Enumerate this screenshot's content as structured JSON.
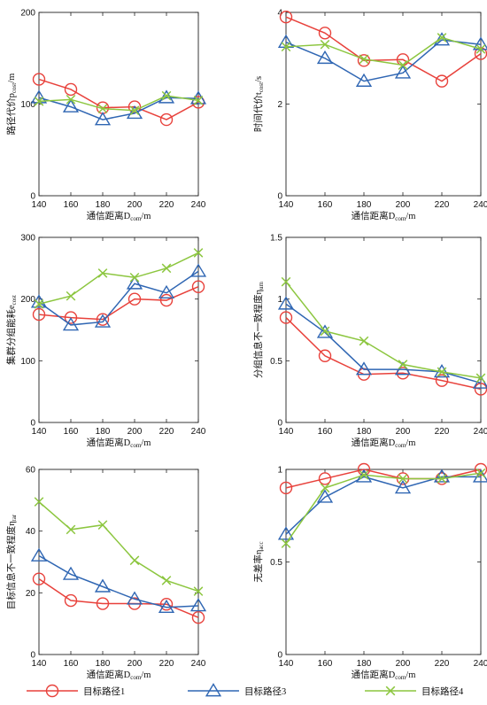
{
  "legend": [
    {
      "name": "目标路径1",
      "color": "#e8413b",
      "marker": "circle"
    },
    {
      "name": "目标路径3",
      "color": "#2f66b3",
      "marker": "triangle"
    },
    {
      "name": "目标路径4",
      "color": "#8cc63f",
      "marker": "cross"
    }
  ],
  "chart_data": [
    {
      "type": "line",
      "x": [
        140,
        160,
        180,
        200,
        220,
        240
      ],
      "xlabel": "通信距离D_com/m",
      "ylabel": "路径代价p_cost/m",
      "xlim": [
        140,
        240
      ],
      "ylim": [
        0,
        200
      ],
      "xticks": [
        140,
        160,
        180,
        200,
        220,
        240
      ],
      "yticks": [
        0,
        100,
        200
      ],
      "series": [
        {
          "name": "目标路径1",
          "values": [
            127,
            116,
            96,
            97,
            83,
            102
          ]
        },
        {
          "name": "目标路径3",
          "values": [
            107,
            97,
            83,
            90,
            107,
            106
          ]
        },
        {
          "name": "目标路径4",
          "values": [
            103,
            105,
            95,
            93,
            109,
            104
          ]
        }
      ]
    },
    {
      "type": "line",
      "x": [
        140,
        160,
        180,
        200,
        220,
        240
      ],
      "xlabel": "通信距离D_com/m",
      "ylabel": "时间代价t_cost/s",
      "xlim": [
        140,
        240
      ],
      "ylim": [
        0,
        4
      ],
      "xticks": [
        140,
        160,
        180,
        200,
        220,
        240
      ],
      "yticks": [
        0,
        2,
        4
      ],
      "series": [
        {
          "name": "目标路径1",
          "values": [
            3.9,
            3.55,
            2.95,
            2.97,
            2.5,
            3.1
          ]
        },
        {
          "name": "目标路径3",
          "values": [
            3.35,
            3.0,
            2.5,
            2.68,
            3.4,
            3.3
          ]
        },
        {
          "name": "目标路径4",
          "values": [
            3.25,
            3.3,
            2.98,
            2.85,
            3.45,
            3.2
          ]
        }
      ]
    },
    {
      "type": "line",
      "x": [
        140,
        160,
        180,
        200,
        220,
        240
      ],
      "xlabel": "通信距离D_com/m",
      "ylabel": "集群分组能耗e_cost",
      "xlim": [
        140,
        240
      ],
      "ylim": [
        0,
        300
      ],
      "xticks": [
        140,
        160,
        180,
        200,
        220,
        240
      ],
      "yticks": [
        0,
        100,
        200,
        300
      ],
      "series": [
        {
          "name": "目标路径1",
          "values": [
            175,
            170,
            167,
            200,
            198,
            220
          ]
        },
        {
          "name": "目标路径3",
          "values": [
            195,
            158,
            163,
            225,
            210,
            245
          ]
        },
        {
          "name": "目标路径4",
          "values": [
            192,
            205,
            242,
            235,
            250,
            275
          ]
        }
      ]
    },
    {
      "type": "line",
      "x": [
        140,
        160,
        180,
        200,
        220,
        240
      ],
      "xlabel": "通信距离D_com/m",
      "ylabel": "分组信息不一致程度η_um",
      "xlim": [
        140,
        240
      ],
      "ylim": [
        0,
        1.5
      ],
      "xticks": [
        140,
        160,
        180,
        200,
        220,
        240
      ],
      "yticks": [
        0,
        0.5,
        1.0,
        1.5
      ],
      "series": [
        {
          "name": "目标路径1",
          "values": [
            0.85,
            0.54,
            0.39,
            0.4,
            0.34,
            0.27
          ]
        },
        {
          "name": "目标路径3",
          "values": [
            0.96,
            0.73,
            0.43,
            0.43,
            0.41,
            0.32
          ]
        },
        {
          "name": "目标路径4",
          "values": [
            1.14,
            0.74,
            0.66,
            0.47,
            0.41,
            0.36
          ]
        }
      ]
    },
    {
      "type": "line",
      "x": [
        140,
        160,
        180,
        200,
        220,
        240
      ],
      "xlabel": "通信距离D_com/m",
      "ylabel": "目标信息不一致程度η_tar",
      "xlim": [
        140,
        240
      ],
      "ylim": [
        0,
        60
      ],
      "xticks": [
        140,
        160,
        180,
        200,
        220,
        240
      ],
      "yticks": [
        0,
        20,
        40,
        60
      ],
      "series": [
        {
          "name": "目标路径1",
          "values": [
            24.5,
            17.5,
            16.5,
            16.5,
            16.3,
            12.0
          ]
        },
        {
          "name": "目标路径3",
          "values": [
            32.0,
            26.0,
            22.0,
            18.0,
            15.3,
            15.8
          ]
        },
        {
          "name": "目标路径4",
          "values": [
            49.5,
            40.5,
            42.0,
            30.5,
            24.0,
            20.5
          ]
        }
      ]
    },
    {
      "type": "line",
      "x": [
        140,
        160,
        180,
        200,
        220,
        240
      ],
      "xlabel": "通信距离D_com/m",
      "ylabel": "无差率η_acc",
      "xlim": [
        140,
        240
      ],
      "ylim": [
        0,
        1.0
      ],
      "xticks": [
        140,
        160,
        180,
        200,
        220,
        240
      ],
      "yticks": [
        0,
        0.5,
        1.0
      ],
      "series": [
        {
          "name": "目标路径1",
          "values": [
            0.9,
            0.95,
            1.0,
            0.95,
            0.95,
            1.0
          ]
        },
        {
          "name": "目标路径3",
          "values": [
            0.65,
            0.85,
            0.96,
            0.9,
            0.96,
            0.96
          ]
        },
        {
          "name": "目标路径4",
          "values": [
            0.6,
            0.9,
            0.97,
            0.95,
            0.95,
            0.98
          ]
        }
      ]
    }
  ]
}
